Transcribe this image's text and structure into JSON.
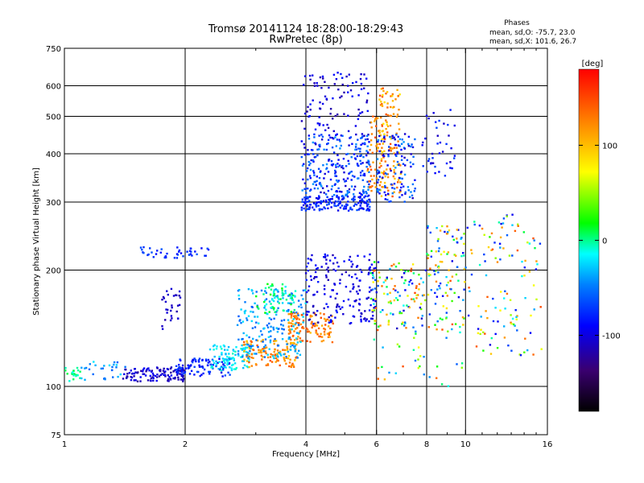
{
  "chart_data": {
    "type": "scatter",
    "title": "Tromsø 20141124  18:28:00-18:29:43",
    "subtitle": "RwPretec (8p)",
    "xlabel": "Frequency [MHz]",
    "ylabel": "Stationary phase Virtual Height [km]",
    "x_scale": "log",
    "y_scale": "log",
    "xlim": [
      1,
      16
    ],
    "ylim": [
      75,
      750
    ],
    "x_ticks": [
      1,
      2,
      4,
      6,
      8,
      10,
      16
    ],
    "x_gridlines": [
      2,
      4,
      6,
      8,
      10
    ],
    "y_ticks": [
      75,
      100,
      200,
      300,
      400,
      500,
      600,
      750
    ],
    "y_gridlines": [
      100,
      200,
      300,
      400,
      500,
      600
    ],
    "grid": true,
    "stats_header": "Phases",
    "stats_lines": [
      "mean, sd,O: -75.7, 23.0",
      "mean, sd,X: 101.6, 26.7"
    ],
    "colorbar": {
      "label": "[deg]",
      "range": [
        -180,
        180
      ],
      "ticks": [
        100,
        0,
        -100
      ],
      "tick_labels": [
        "100",
        "0",
        "-100"
      ],
      "colors": [
        "#000000",
        "#3a0070",
        "#0000ff",
        "#0080ff",
        "#00ffff",
        "#00ff00",
        "#ffff00",
        "#ff8000",
        "#ff0000"
      ]
    },
    "series_clusters": [
      {
        "x": [
          1.0,
          1.1
        ],
        "y": [
          102,
          112
        ],
        "phase": [
          -15,
          15
        ],
        "n": 20
      },
      {
        "x": [
          1.1,
          1.45
        ],
        "y": [
          104,
          116
        ],
        "phase": [
          -60,
          -20
        ],
        "n": 30
      },
      {
        "x": [
          1.4,
          2.0
        ],
        "y": [
          103,
          112
        ],
        "phase": [
          -125,
          -90
        ],
        "n": 120
      },
      {
        "x": [
          1.9,
          2.6
        ],
        "y": [
          106,
          118
        ],
        "phase": [
          -100,
          -60
        ],
        "n": 90
      },
      {
        "x": [
          2.3,
          2.9
        ],
        "y": [
          110,
          128
        ],
        "phase": [
          -35,
          -5
        ],
        "n": 90
      },
      {
        "x": [
          2.8,
          3.8
        ],
        "y": [
          112,
          132
        ],
        "phase": [
          90,
          145
        ],
        "n": 120
      },
      {
        "x": [
          3.6,
          4.7
        ],
        "y": [
          130,
          155
        ],
        "phase": [
          100,
          150
        ],
        "n": 120
      },
      {
        "x": [
          2.7,
          4.0
        ],
        "y": [
          118,
          180
        ],
        "phase": [
          -60,
          -20
        ],
        "n": 200
      },
      {
        "x": [
          3.0,
          3.8
        ],
        "y": [
          155,
          185
        ],
        "phase": [
          -20,
          20
        ],
        "n": 60
      },
      {
        "x": [
          4.0,
          6.0
        ],
        "y": [
          145,
          220
        ],
        "phase": [
          -115,
          -80
        ],
        "n": 180
      },
      {
        "x": [
          1.55,
          2.3
        ],
        "y": [
          215,
          230
        ],
        "phase": [
          -90,
          -60
        ],
        "n": 45
      },
      {
        "x": [
          1.75,
          1.95
        ],
        "y": [
          140,
          180
        ],
        "phase": [
          -120,
          -100
        ],
        "n": 30
      },
      {
        "x": [
          3.9,
          5.8
        ],
        "y": [
          285,
          310
        ],
        "phase": [
          -100,
          -60
        ],
        "n": 150
      },
      {
        "x": [
          3.9,
          5.8
        ],
        "y": [
          310,
          450
        ],
        "phase": [
          -110,
          -40
        ],
        "n": 260
      },
      {
        "x": [
          3.9,
          5.8
        ],
        "y": [
          450,
          650
        ],
        "phase": [
          -120,
          -80
        ],
        "n": 90
      },
      {
        "x": [
          5.7,
          6.2
        ],
        "y": [
          320,
          500
        ],
        "phase": [
          100,
          150
        ],
        "n": 50
      },
      {
        "x": [
          6.1,
          6.9
        ],
        "y": [
          310,
          600
        ],
        "phase": [
          80,
          150
        ],
        "n": 120
      },
      {
        "x": [
          6.0,
          7.5
        ],
        "y": [
          300,
          450
        ],
        "phase": [
          -110,
          -40
        ],
        "n": 120
      },
      {
        "x": [
          7.8,
          9.5
        ],
        "y": [
          350,
          520
        ],
        "phase": [
          -110,
          -60
        ],
        "n": 40
      },
      {
        "x": [
          5.8,
          8.0
        ],
        "y": [
          140,
          210
        ],
        "phase": [
          -110,
          150
        ],
        "n": 120
      },
      {
        "x": [
          8.0,
          10.0
        ],
        "y": [
          140,
          260
        ],
        "phase": [
          -100,
          150
        ],
        "n": 110
      },
      {
        "x": [
          10.0,
          15.5
        ],
        "y": [
          120,
          280
        ],
        "phase": [
          -100,
          150
        ],
        "n": 120
      },
      {
        "x": [
          5.9,
          10.0
        ],
        "y": [
          100,
          140
        ],
        "phase": [
          -60,
          150
        ],
        "n": 35
      }
    ]
  }
}
